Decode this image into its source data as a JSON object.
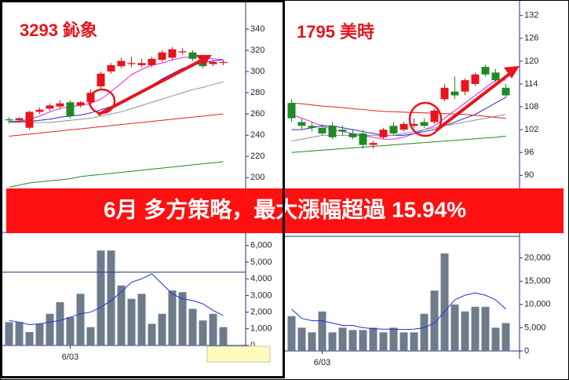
{
  "banner": "6月 多方策略，最大漲幅超過 15.94%",
  "chart_data": [
    {
      "type": "candlestick",
      "title": "3293 鈊象",
      "categories": [
        null,
        null,
        null,
        null,
        null,
        null,
        "6/03",
        null,
        null,
        null,
        null,
        null,
        null,
        null,
        null,
        null,
        null,
        null,
        null,
        null,
        null,
        null
      ],
      "open": [
        255,
        254,
        247,
        262,
        265,
        267,
        271,
        268,
        271,
        286,
        300,
        305,
        307,
        306,
        306,
        311,
        313,
        318,
        318,
        311,
        307,
        308
      ],
      "high": [
        257,
        257,
        263,
        266,
        270,
        273,
        273,
        272,
        283,
        300,
        308,
        313,
        314,
        312,
        314,
        320,
        323,
        322,
        320,
        313,
        311,
        311
      ],
      "low": [
        251,
        252,
        245,
        260,
        263,
        265,
        256,
        266,
        269,
        284,
        298,
        303,
        304,
        304,
        304,
        309,
        311,
        316,
        310,
        303,
        305,
        306
      ],
      "close": [
        254,
        256,
        262,
        264,
        268,
        270,
        258,
        271,
        280,
        298,
        306,
        310,
        308,
        308,
        312,
        318,
        321,
        319,
        312,
        305,
        309,
        309
      ],
      "up_color": "#e8141c",
      "down_color": "#1e8a24",
      "lines": [
        {
          "color": "#e020e0",
          "values": [
            252,
            253,
            255,
            258,
            262,
            265,
            267,
            268,
            270,
            274,
            281,
            289,
            297,
            302,
            306,
            308,
            311,
            313,
            314,
            314,
            312,
            311
          ]
        },
        {
          "color": "#2030c0",
          "values": [
            253,
            253,
            253,
            254,
            255,
            257,
            258,
            259,
            261,
            264,
            267,
            271,
            276,
            282,
            287,
            293,
            298,
            303,
            306,
            308,
            310,
            311
          ]
        },
        {
          "color": "#909090",
          "values": [
            252,
            252,
            252,
            252,
            252,
            253,
            254,
            255,
            256,
            258,
            260,
            262,
            265,
            268,
            271,
            274,
            277,
            280,
            283,
            285,
            288,
            290
          ]
        },
        {
          "color": "#e02020",
          "values": [
            239,
            240,
            241,
            242,
            243,
            244,
            245,
            246,
            247,
            248,
            249,
            250,
            251,
            252,
            253,
            254,
            255,
            256,
            257,
            258,
            259,
            260
          ]
        },
        {
          "color": "#208a20",
          "values": [
            191,
            193,
            195,
            196,
            197,
            198,
            199,
            201,
            202,
            203,
            204,
            205,
            206,
            207,
            208,
            209,
            210,
            211,
            212,
            213,
            214,
            215
          ]
        }
      ],
      "ylim": [
        195,
        360
      ],
      "yticks": [
        200,
        220,
        240,
        260,
        280,
        300,
        320,
        340
      ],
      "volume": {
        "color": "#6e7b8b",
        "values": [
          1400,
          1400,
          800,
          1300,
          1900,
          2600,
          1700,
          3100,
          1100,
          5700,
          5700,
          3600,
          2800,
          3100,
          1300,
          1900,
          3300,
          3200,
          2200,
          1500,
          1900,
          1100
        ],
        "line_color": "#2030e0",
        "line": [
          1500,
          1400,
          1250,
          1300,
          1400,
          1500,
          1700,
          1900,
          2000,
          2300,
          2700,
          3200,
          3800,
          4000,
          4300,
          3700,
          3100,
          2800,
          2700,
          2500,
          2100,
          1800
        ],
        "reference_line": 4400,
        "ylim": [
          0,
          6600
        ],
        "yticks": [
          0,
          {
            "value": 1000,
            "label": "1,000"
          },
          {
            "value": 2000,
            "label": "2,000"
          },
          {
            "value": 3000,
            "label": "3,000"
          },
          {
            "value": 4000,
            "label": "4,000"
          },
          {
            "value": 5000,
            "label": "5,000"
          },
          {
            "value": 6000,
            "label": "6,000"
          }
        ]
      }
    },
    {
      "type": "candlestick",
      "title": "1795 美時",
      "categories": [
        null,
        null,
        null,
        "6/03",
        null,
        null,
        null,
        null,
        null,
        null,
        null,
        null,
        null,
        null,
        null,
        null,
        null,
        null,
        null,
        null,
        null,
        null
      ],
      "open": [
        109,
        104,
        103,
        102.5,
        103,
        102,
        101,
        101,
        98,
        100,
        103,
        102,
        103,
        104,
        104,
        110,
        112,
        112,
        114,
        118.5,
        117,
        113
      ],
      "high": [
        110,
        105,
        104,
        103.5,
        104,
        103,
        102,
        102,
        99,
        102.5,
        104,
        104,
        105,
        105,
        107.5,
        114,
        116,
        115.5,
        117,
        119,
        118,
        114
      ],
      "low": [
        104,
        102,
        101.5,
        100.5,
        99.5,
        100.5,
        99.5,
        97,
        97,
        99.5,
        100.5,
        101.5,
        102.5,
        102.5,
        103.5,
        109.5,
        110,
        111,
        113.5,
        116,
        114.5,
        110.5
      ],
      "close": [
        105,
        103,
        102.5,
        101,
        100,
        101.5,
        100,
        98,
        98.5,
        102,
        101,
        103.5,
        103.5,
        103,
        107,
        113,
        111,
        115,
        116.5,
        116.5,
        115,
        111
      ],
      "up_color": "#e8141c",
      "down_color": "#1e8a24",
      "lines": [
        {
          "color": "#e020e0",
          "values": [
            106,
            105,
            104,
            103,
            102,
            101.5,
            101,
            100.5,
            100,
            99.5,
            99.5,
            100,
            101,
            102,
            103,
            105,
            107,
            109,
            111,
            113,
            115,
            115
          ]
        },
        {
          "color": "#2030c0",
          "values": [
            102,
            102,
            102.5,
            103,
            103,
            102.5,
            102,
            101.5,
            101,
            100.5,
            100.5,
            100.5,
            101,
            101.5,
            102,
            103,
            104,
            105,
            106,
            107.5,
            109,
            110.5
          ]
        },
        {
          "color": "#909090",
          "values": [
            99,
            99.5,
            100,
            100.5,
            100.5,
            100.5,
            100.5,
            100.5,
            100.5,
            100.5,
            100.5,
            101,
            101.5,
            102,
            102.5,
            103,
            103.5,
            104,
            104.5,
            105,
            105.5,
            106
          ]
        },
        {
          "color": "#e02020",
          "values": [
            109,
            108.8,
            108.5,
            108.2,
            108,
            107.8,
            107.5,
            107.3,
            107,
            106.8,
            106.7,
            106.6,
            106.5,
            106.4,
            106.3,
            106.2,
            106.1,
            106,
            105.8,
            105.5,
            105.2,
            105
          ]
        },
        {
          "color": "#208a20",
          "values": [
            96,
            96.2,
            96.4,
            96.6,
            96.8,
            97,
            97.2,
            97.4,
            97.6,
            97.8,
            98,
            98.2,
            98.4,
            98.6,
            98.8,
            99,
            99.2,
            99.4,
            99.6,
            99.8,
            100,
            100.3
          ]
        }
      ],
      "ylim": [
        88,
        134
      ],
      "yticks": [
        90,
        96,
        102,
        108,
        114,
        120,
        126,
        132
      ],
      "volume": {
        "color": "#6e7b8b",
        "values": [
          7500,
          5000,
          4000,
          8500,
          4000,
          5000,
          4500,
          4500,
          5000,
          4000,
          5000,
          4000,
          4000,
          8000,
          13000,
          21000,
          10000,
          8500,
          9500,
          9500,
          5000,
          6000
        ],
        "line_color": "#2030e0",
        "line": [
          9000,
          7000,
          6500,
          6500,
          6000,
          5500,
          5500,
          5000,
          4800,
          4700,
          4700,
          4600,
          4700,
          5000,
          6000,
          8500,
          11000,
          12000,
          12500,
          12000,
          11000,
          9000
        ],
        "ylim": [
          0,
          24000
        ],
        "yticks": [
          0,
          {
            "value": 5000,
            "label": "5,000"
          },
          {
            "value": 10000,
            "label": "10,000"
          },
          {
            "value": 15000,
            "label": "15,000"
          },
          {
            "value": 20000,
            "label": "20,000"
          }
        ]
      }
    }
  ]
}
